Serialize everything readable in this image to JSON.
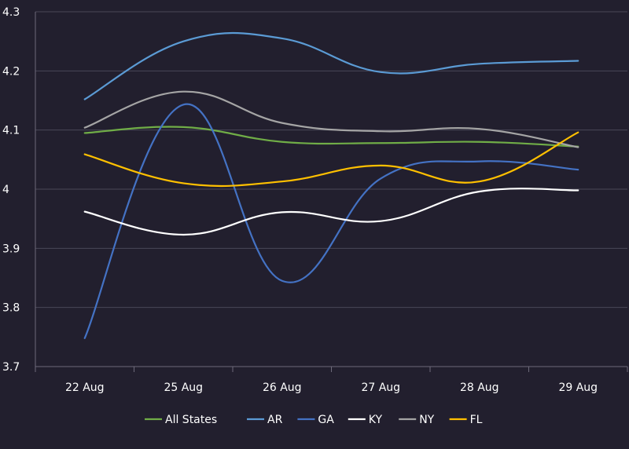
{
  "chart_data": {
    "type": "line",
    "title": "",
    "xlabel": "",
    "ylabel": "",
    "categories": [
      "22 Aug",
      "25 Aug",
      "26 Aug",
      "27 Aug",
      "28 Aug",
      "29 Aug"
    ],
    "ylim": [
      3.7,
      4.3
    ],
    "yticks": [
      3.7,
      3.8,
      3.9,
      4.0,
      4.1,
      4.2,
      4.3
    ],
    "ytick_labels": [
      "3.7",
      "3.8",
      "3.9",
      "4",
      "4.1",
      "4.2",
      "4.3"
    ],
    "grid": true,
    "legend_position": "bottom",
    "series": [
      {
        "name": "All States",
        "color": "#70ad47",
        "values": [
          4.095,
          4.105,
          4.08,
          4.078,
          4.08,
          4.072
        ]
      },
      {
        "name": "AR",
        "color": "#5b9bd5",
        "values": [
          4.152,
          4.25,
          4.255,
          4.198,
          4.212,
          4.217
        ]
      },
      {
        "name": "GA",
        "color": "#4472c4",
        "values": [
          3.748,
          4.143,
          3.845,
          4.018,
          4.047,
          4.033
        ]
      },
      {
        "name": "KY",
        "color": "#ffffff",
        "values": [
          3.962,
          3.923,
          3.961,
          3.946,
          3.996,
          3.998
        ]
      },
      {
        "name": "NY",
        "color": "#a5a5a5",
        "values": [
          4.104,
          4.165,
          4.112,
          4.098,
          4.102,
          4.071
        ]
      },
      {
        "name": "FL",
        "color": "#ffc000",
        "values": [
          4.059,
          4.01,
          4.013,
          4.04,
          4.013,
          4.096
        ]
      }
    ]
  }
}
